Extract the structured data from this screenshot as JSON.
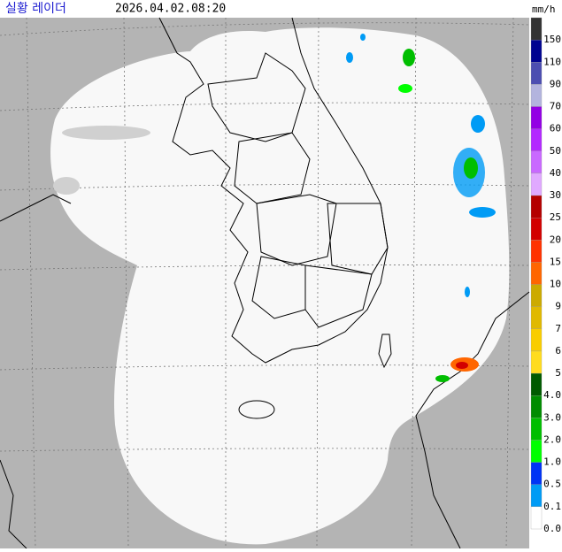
{
  "header": {
    "title": "실황 레이더",
    "timestamp": "2026.04.02.08:20",
    "unit": "mm/h"
  },
  "legend": {
    "levels": [
      {
        "label": "150",
        "color": "#333333"
      },
      {
        "label": "110",
        "color": "#000390"
      },
      {
        "label": "90",
        "color": "#4c4eb1"
      },
      {
        "label": "70",
        "color": "#b3b4de"
      },
      {
        "label": "60",
        "color": "#9300e4"
      },
      {
        "label": "50",
        "color": "#b329ff"
      },
      {
        "label": "40",
        "color": "#c969ff"
      },
      {
        "label": "30",
        "color": "#e0a9ff"
      },
      {
        "label": "25",
        "color": "#b40000"
      },
      {
        "label": "20",
        "color": "#d20000"
      },
      {
        "label": "15",
        "color": "#ff3200"
      },
      {
        "label": "10",
        "color": "#ff6600"
      },
      {
        "label": "9",
        "color": "#ccaa00"
      },
      {
        "label": "7",
        "color": "#e0b900"
      },
      {
        "label": "6",
        "color": "#f9cd00"
      },
      {
        "label": "5",
        "color": "#ffdc1f"
      },
      {
        "label": "4.0",
        "color": "#005a00"
      },
      {
        "label": "3.0",
        "color": "#008c00"
      },
      {
        "label": "2.0",
        "color": "#00be00"
      },
      {
        "label": "1.0",
        "color": "#00ff00"
      },
      {
        "label": "0.5",
        "color": "#0033f5"
      },
      {
        "label": "0.1",
        "color": "#009bf5"
      },
      {
        "label": "0.0",
        "color": "#ffffff"
      }
    ]
  }
}
